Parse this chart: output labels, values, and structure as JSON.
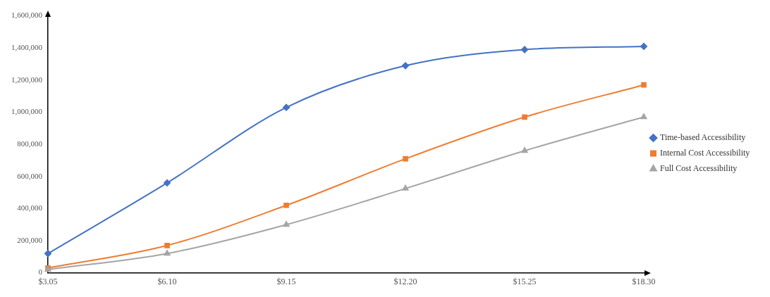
{
  "chart_data": {
    "type": "line",
    "categories": [
      "$3.05",
      "$6.10",
      "$9.15",
      "$12.20",
      "$15.25",
      "$18.30"
    ],
    "series": [
      {
        "name": "Time-based Accessibility",
        "color": "#4472c4",
        "marker": "diamond",
        "values": [
          120000,
          560000,
          1030000,
          1290000,
          1390000,
          1410000
        ]
      },
      {
        "name": "Internal Cost Accessibility",
        "color": "#ed7d31",
        "marker": "square",
        "values": [
          30000,
          170000,
          420000,
          710000,
          970000,
          1170000
        ]
      },
      {
        "name": "Full Cost Accessibility",
        "color": "#a5a5a5",
        "marker": "triangle",
        "values": [
          20000,
          120000,
          300000,
          525000,
          760000,
          970000
        ]
      }
    ],
    "ylim": [
      0,
      1600000
    ],
    "yticks": [
      {
        "value": 0,
        "label": "0"
      },
      {
        "value": 200000,
        "label": "200,000"
      },
      {
        "value": 400000,
        "label": "400,000"
      },
      {
        "value": 600000,
        "label": "600,000"
      },
      {
        "value": 800000,
        "label": "800,000"
      },
      {
        "value": 1000000,
        "label": "1,000,000"
      },
      {
        "value": 1200000,
        "label": "1,200,000"
      },
      {
        "value": 1400000,
        "label": "1,400,000"
      },
      {
        "value": 1600000,
        "label": "1,600,000"
      }
    ],
    "grid": false,
    "legend": "right"
  }
}
